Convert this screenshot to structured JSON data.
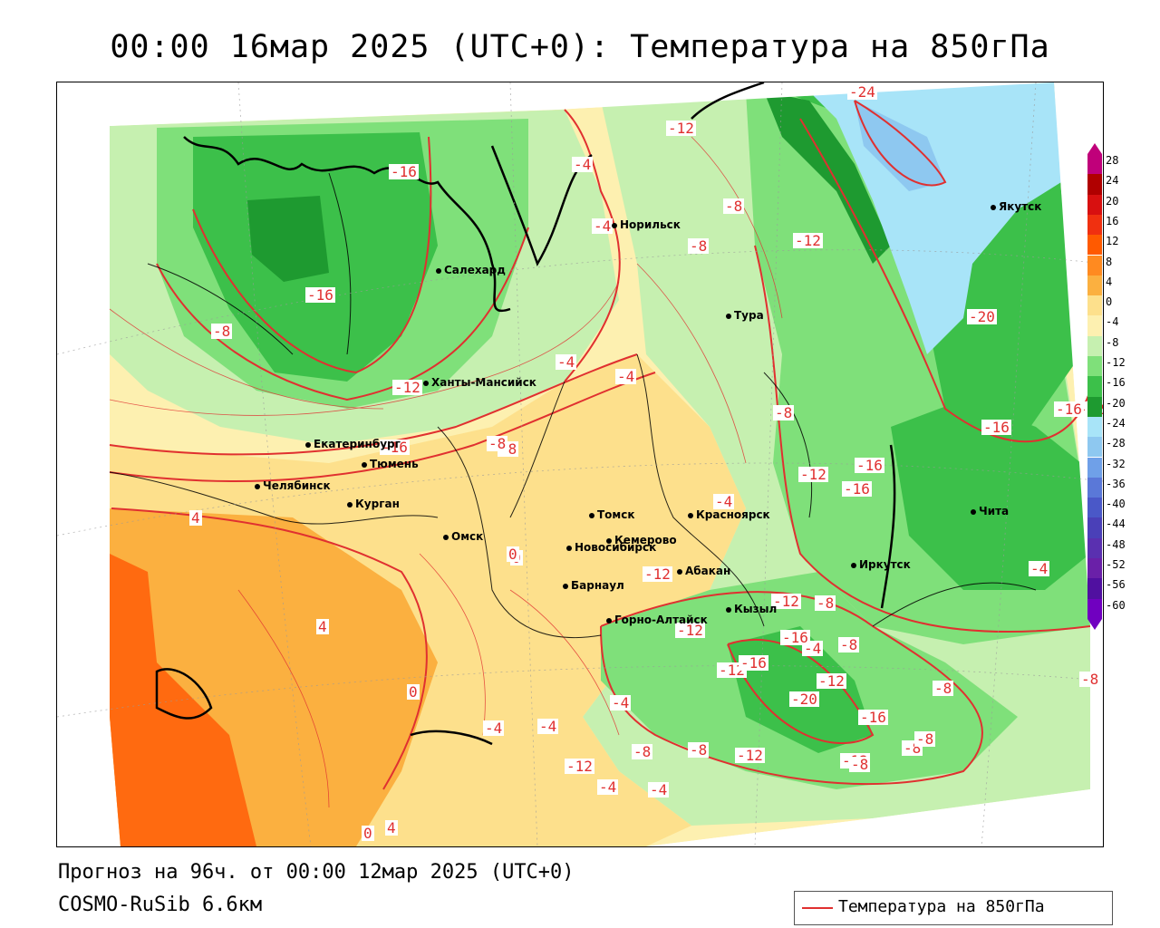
{
  "title": "00:00 16мар 2025 (UTC+0): Температура на 850гПа",
  "subtitle_forecast": "Прогноз на 96ч. от 00:00 12мар 2025 (UTC+0)",
  "subtitle_model": "COSMO-RuSib 6.6км",
  "legend": {
    "label": "Температура на 850гПа",
    "color": "#e03030"
  },
  "colors": {
    "contour": "#e03030",
    "shade_pos8": "#ff6a10",
    "shade_pos4": "#fbb040",
    "shade_0": "#fde08c",
    "shade_m4": "#fdf0b0",
    "shade_m8": "#c6f0b0",
    "shade_m12": "#7fe07a",
    "shade_m16": "#3cc04a",
    "shade_m20": "#1e9a30",
    "shade_m24": "#a8e4f8",
    "shade_m28": "#8ec8f0"
  },
  "colorbar": {
    "labels": [
      "28",
      "24",
      "20",
      "16",
      "12",
      "8",
      "4",
      "0",
      "-4",
      "-8",
      "-12",
      "-16",
      "-20",
      "-24",
      "-28",
      "-32",
      "-36",
      "-40",
      "-44",
      "-48",
      "-52",
      "-56",
      "-60"
    ],
    "colors": [
      "#c0007a",
      "#b00000",
      "#d81010",
      "#f03010",
      "#ff5a00",
      "#ff8a20",
      "#fbb040",
      "#fde08c",
      "#fdf0b0",
      "#c6f0b0",
      "#7fe07a",
      "#3cc04a",
      "#1e9a30",
      "#a8e4f8",
      "#8ec8f0",
      "#6fa0e8",
      "#5a78d8",
      "#4a58c8",
      "#4a40b8",
      "#5a30b0",
      "#6a20a8",
      "#5010a0",
      "#7000c0"
    ]
  },
  "cities": [
    {
      "name": "Норильск"
    },
    {
      "name": "Салехард"
    },
    {
      "name": "Тура"
    },
    {
      "name": "Якутск"
    },
    {
      "name": "Ханты-Мансийск"
    },
    {
      "name": "Екатеринбург"
    },
    {
      "name": "Тюмень"
    },
    {
      "name": "Челябинск"
    },
    {
      "name": "Курган"
    },
    {
      "name": "Омск"
    },
    {
      "name": "Томск"
    },
    {
      "name": "Красноярск"
    },
    {
      "name": "Новосибирск"
    },
    {
      "name": "Кемерово"
    },
    {
      "name": "Абакан"
    },
    {
      "name": "Барнаул"
    },
    {
      "name": "Кызыл"
    },
    {
      "name": "Горно-Алтайск"
    },
    {
      "name": "Иркутск"
    },
    {
      "name": "Чита"
    }
  ],
  "contour_labels": [
    "-24",
    "-12",
    "-4",
    "-16",
    "-8",
    "-4",
    "-12",
    "-8",
    "-8",
    "-16",
    "-20",
    "-16",
    "-12",
    "-4",
    "-4",
    "-12",
    "-8",
    "-8",
    "-16",
    "-16",
    "-8",
    "-12",
    "-4",
    "-16",
    "-12",
    "-4",
    "0",
    "-8",
    "-4",
    "-12",
    "-12",
    "-12",
    "-16",
    "-16",
    "-8",
    "-20",
    "-12",
    "-16",
    "-12",
    "-8",
    "-8",
    "-8",
    "4",
    "4",
    "0",
    "0",
    "-4",
    "-4",
    "-4",
    "-12",
    "-4",
    "-4",
    "-8",
    "-12",
    "-8",
    "-8",
    "0",
    "4",
    "-4",
    "-16",
    "-8"
  ]
}
